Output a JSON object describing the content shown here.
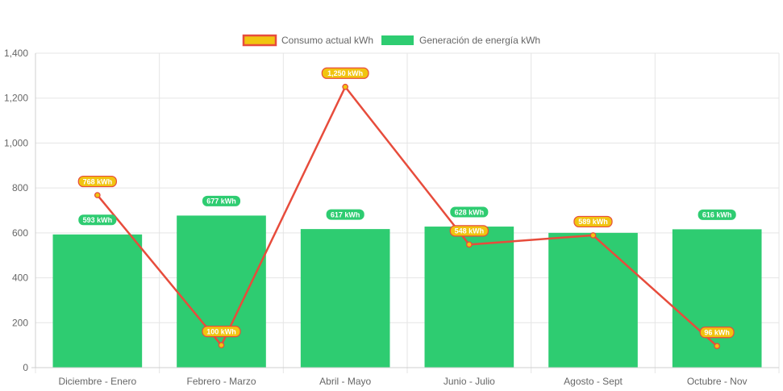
{
  "chart_data": {
    "type": "bar",
    "categories": [
      "Diciembre - Enero",
      "Febrero - Marzo",
      "Abril - Mayo",
      "Junio - Julio",
      "Agosto - Sept",
      "Octubre - Nov"
    ],
    "series": [
      {
        "name": "Consumo actual kWh",
        "render": "line",
        "values": [
          768,
          100,
          1250,
          548,
          589,
          96
        ],
        "labels": [
          "768 kWh",
          "100 kWh",
          "1,250 kWh",
          "548 kWh",
          "589 kWh",
          "96 kWh"
        ],
        "line_color": "#e74c3c",
        "fill_color": "#f1c40f"
      },
      {
        "name": "Generación de energía kWh",
        "render": "bar",
        "values": [
          593,
          677,
          617,
          628,
          600,
          616
        ],
        "labels": [
          "593 kWh",
          "677 kWh",
          "617 kWh",
          "628 kWh",
          "",
          "616 kWh"
        ],
        "color": "#2ecc71"
      }
    ],
    "yticks": [
      "0",
      "200",
      "400",
      "600",
      "800",
      "1,000",
      "1,200",
      "1,400"
    ],
    "ylim": [
      0,
      1400
    ],
    "grid": true,
    "legend_position": "top-center"
  }
}
